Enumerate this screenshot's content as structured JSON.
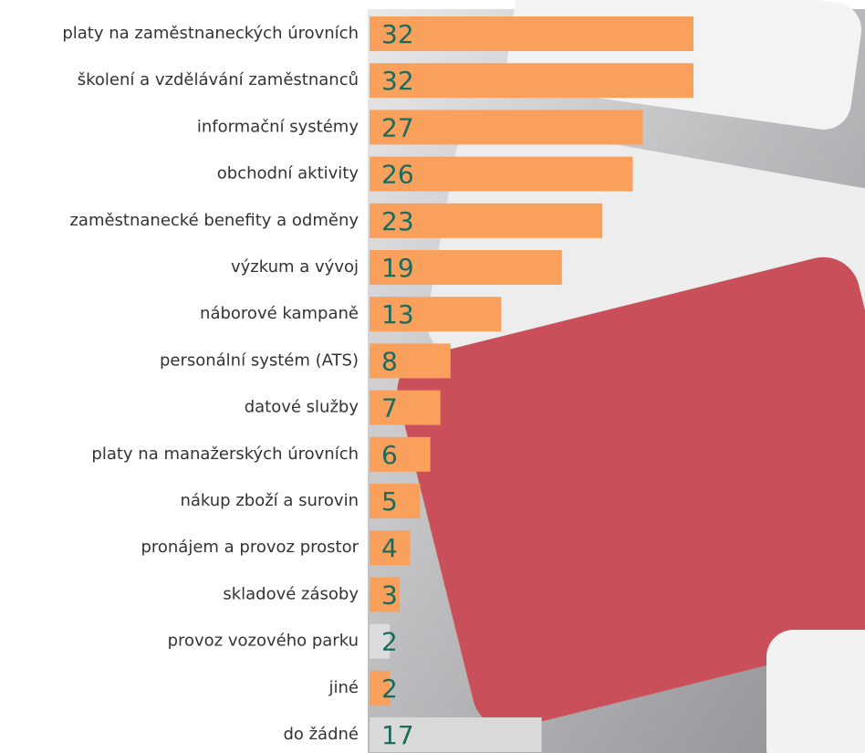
{
  "chart_data": {
    "type": "barh",
    "categories": [
      "platy na zaměstnaneckých úrovních",
      "školení a vzdělávání zaměstnanců",
      "informační systémy",
      "obchodní aktivity",
      "zaměstnanecké benefity a odměny",
      "výzkum a vývoj",
      "náborové kampaně",
      "personální systém (ATS)",
      "datové služby",
      "platy na manažerských úrovních",
      "nákup zboží a surovin",
      "pronájem a provoz prostor",
      "skladové zásoby",
      "provoz vozového parku",
      "jiné",
      "do žádné"
    ],
    "values": [
      32,
      32,
      27,
      26,
      23,
      19,
      13,
      8,
      7,
      6,
      5,
      4,
      3,
      2,
      2,
      17
    ],
    "colors": [
      "#f9a05c",
      "#f9a05c",
      "#f9a05c",
      "#f9a05c",
      "#f9a05c",
      "#f9a05c",
      "#f9a05c",
      "#f9a05c",
      "#f9a05c",
      "#f9a05c",
      "#f9a05c",
      "#f9a05c",
      "#f9a05c",
      "#dcdcdc",
      "#f9a05c",
      "#d9d9d9"
    ]
  }
}
